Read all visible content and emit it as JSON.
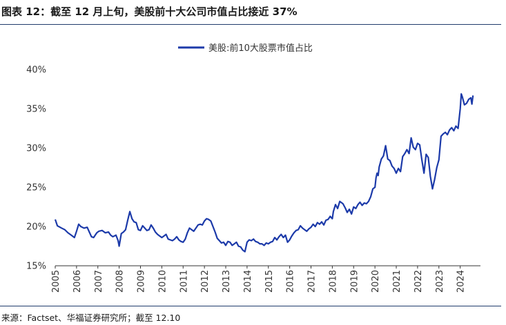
{
  "header": {
    "title": "图表 12：截至 12 月上旬，美股前十大公司市值占比接近 37%"
  },
  "footer": {
    "source": "来源：Factset、华福证券研究所；截至 12.10"
  },
  "colors": {
    "series": "#1c3aa9",
    "rule": "#1f3a6b",
    "axis": "#333333"
  },
  "chart_data": {
    "type": "line",
    "title": "图表 12：截至 12 月上旬，美股前十大公司市值占比接近 37%",
    "xlabel": "",
    "ylabel": "",
    "ylim": [
      15,
      40
    ],
    "yticks": [
      "15%",
      "20%",
      "25%",
      "30%",
      "35%",
      "40%"
    ],
    "ytick_values": [
      15,
      20,
      25,
      30,
      35,
      40
    ],
    "xlim": [
      2005,
      2024.95
    ],
    "xticks": [
      "2005",
      "2006",
      "2007",
      "2008",
      "2009",
      "2010",
      "2011",
      "2012",
      "2013",
      "2014",
      "2015",
      "2016",
      "2017",
      "2018",
      "2019",
      "2020",
      "2021",
      "2022",
      "2023",
      "2024"
    ],
    "xtick_values": [
      2005,
      2006,
      2007,
      2008,
      2009,
      2010,
      2011,
      2012,
      2013,
      2014,
      2015,
      2016,
      2017,
      2018,
      2019,
      2020,
      2021,
      2022,
      2023,
      2024
    ],
    "grid": false,
    "legend_position": "top-center",
    "series": [
      {
        "name": "美股:前10大股票市值占比",
        "x": [
          2005.0,
          2005.1,
          2005.3,
          2005.45,
          2005.6,
          2005.75,
          2005.9,
          2006.0,
          2006.1,
          2006.2,
          2006.35,
          2006.5,
          2006.6,
          2006.7,
          2006.8,
          2006.95,
          2007.05,
          2007.2,
          2007.35,
          2007.5,
          2007.6,
          2007.7,
          2007.85,
          2007.95,
          2008.0,
          2008.1,
          2008.2,
          2008.3,
          2008.4,
          2008.5,
          2008.6,
          2008.7,
          2008.8,
          2008.9,
          2009.0,
          2009.1,
          2009.2,
          2009.3,
          2009.4,
          2009.5,
          2009.6,
          2009.7,
          2009.8,
          2009.9,
          2010.0,
          2010.1,
          2010.2,
          2010.3,
          2010.4,
          2010.5,
          2010.6,
          2010.7,
          2010.8,
          2010.9,
          2011.0,
          2011.1,
          2011.2,
          2011.3,
          2011.4,
          2011.5,
          2011.6,
          2011.7,
          2011.8,
          2011.9,
          2012.0,
          2012.1,
          2012.2,
          2012.3,
          2012.4,
          2012.5,
          2012.6,
          2012.7,
          2012.8,
          2012.9,
          2013.0,
          2013.1,
          2013.2,
          2013.3,
          2013.4,
          2013.5,
          2013.6,
          2013.7,
          2013.8,
          2013.9,
          2014.0,
          2014.1,
          2014.2,
          2014.3,
          2014.4,
          2014.5,
          2014.6,
          2014.7,
          2014.8,
          2014.9,
          2015.0,
          2015.1,
          2015.2,
          2015.3,
          2015.4,
          2015.5,
          2015.6,
          2015.7,
          2015.8,
          2015.9,
          2016.0,
          2016.1,
          2016.2,
          2016.3,
          2016.4,
          2016.5,
          2016.6,
          2016.7,
          2016.8,
          2016.9,
          2017.0,
          2017.1,
          2017.2,
          2017.3,
          2017.4,
          2017.5,
          2017.6,
          2017.7,
          2017.8,
          2017.9,
          2018.0,
          2018.05,
          2018.15,
          2018.25,
          2018.35,
          2018.5,
          2018.6,
          2018.7,
          2018.8,
          2018.9,
          2019.0,
          2019.1,
          2019.2,
          2019.3,
          2019.4,
          2019.5,
          2019.6,
          2019.7,
          2019.8,
          2019.9,
          2020.0,
          2020.05,
          2020.1,
          2020.15,
          2020.2,
          2020.3,
          2020.4,
          2020.5,
          2020.55,
          2020.6,
          2020.7,
          2020.8,
          2020.9,
          2021.0,
          2021.1,
          2021.2,
          2021.3,
          2021.4,
          2021.5,
          2021.6,
          2021.7,
          2021.8,
          2021.9,
          2022.0,
          2022.1,
          2022.2,
          2022.3,
          2022.4,
          2022.5,
          2022.6,
          2022.7,
          2022.8,
          2022.9,
          2023.0,
          2023.1,
          2023.2,
          2023.3,
          2023.4,
          2023.5,
          2023.6,
          2023.7,
          2023.8,
          2023.9,
          2024.0,
          2024.05,
          2024.1,
          2024.2,
          2024.3,
          2024.4,
          2024.5,
          2024.55,
          2024.6
        ],
        "values": [
          20.9,
          20.1,
          19.8,
          19.6,
          19.2,
          18.9,
          18.6,
          19.4,
          20.3,
          20.0,
          19.8,
          19.9,
          19.3,
          18.7,
          18.6,
          19.2,
          19.4,
          19.5,
          19.2,
          19.3,
          18.9,
          18.7,
          18.9,
          18.2,
          17.5,
          19.1,
          19.3,
          19.6,
          20.8,
          21.9,
          21.0,
          20.6,
          20.5,
          19.6,
          19.5,
          20.1,
          19.8,
          19.5,
          19.6,
          20.2,
          19.8,
          19.3,
          19.0,
          18.8,
          18.6,
          18.8,
          19.0,
          18.4,
          18.3,
          18.2,
          18.4,
          18.7,
          18.3,
          18.1,
          18.0,
          18.4,
          19.2,
          19.8,
          19.6,
          19.4,
          19.8,
          20.2,
          20.3,
          20.2,
          20.7,
          21.0,
          20.9,
          20.7,
          20.0,
          19.3,
          18.5,
          18.2,
          17.9,
          18.0,
          17.6,
          18.1,
          18.0,
          17.6,
          17.8,
          18.0,
          17.5,
          17.4,
          17.0,
          16.8,
          18.0,
          18.3,
          18.2,
          18.4,
          18.1,
          18.0,
          17.8,
          17.8,
          17.6,
          17.9,
          17.8,
          18.0,
          18.1,
          18.6,
          18.3,
          18.7,
          19.0,
          18.6,
          18.9,
          18.0,
          18.3,
          18.8,
          19.2,
          19.5,
          19.6,
          20.1,
          19.8,
          19.6,
          19.4,
          19.7,
          19.9,
          20.3,
          20.0,
          20.5,
          20.3,
          20.6,
          20.2,
          20.8,
          20.9,
          21.3,
          21.0,
          21.9,
          22.8,
          22.3,
          23.2,
          22.9,
          22.4,
          21.8,
          22.2,
          21.6,
          22.5,
          22.3,
          22.8,
          23.1,
          22.7,
          23.0,
          22.9,
          23.2,
          23.8,
          24.8,
          25.0,
          26.2,
          26.8,
          26.5,
          27.6,
          28.6,
          29.0,
          30.3,
          29.5,
          28.6,
          28.4,
          27.7,
          27.4,
          26.8,
          27.4,
          27.0,
          28.9,
          29.3,
          29.8,
          29.3,
          31.3,
          30.1,
          29.8,
          30.6,
          30.4,
          28.5,
          26.8,
          29.2,
          28.8,
          26.4,
          24.8,
          26.0,
          27.5,
          28.5,
          31.5,
          31.8,
          32.0,
          31.7,
          32.3,
          32.6,
          32.2,
          32.8,
          32.5,
          35.0,
          36.9,
          36.5,
          35.5,
          35.7,
          36.2,
          36.4,
          35.6,
          36.7
        ]
      }
    ]
  }
}
